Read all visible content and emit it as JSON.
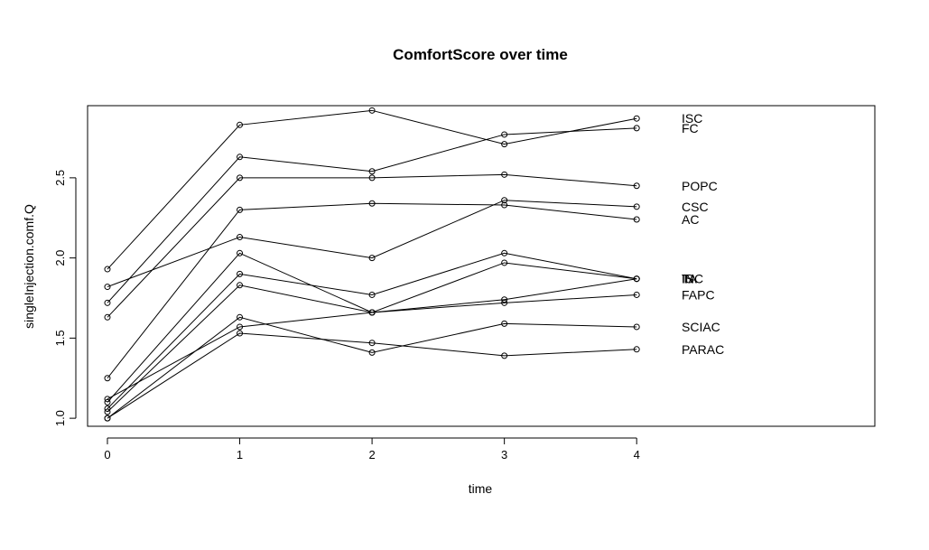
{
  "chart_data": {
    "type": "line",
    "title": "ComfortScore over time",
    "xlabel": "time",
    "ylabel": "singleInjection.comf.Q",
    "x": [
      0,
      1,
      2,
      3,
      4
    ],
    "x_ticks": [
      "0",
      "1",
      "2",
      "3",
      "4"
    ],
    "y_ticks": [
      "1.0",
      "1.5",
      "2.0",
      "2.5"
    ],
    "xlim": [
      -0.15,
      5.8
    ],
    "ylim": [
      0.95,
      2.95
    ],
    "grid": false,
    "legend": "none",
    "series": [
      {
        "name": "ISC",
        "values": [
          1.93,
          2.83,
          2.92,
          2.71,
          2.87
        ]
      },
      {
        "name": "FC",
        "values": [
          1.72,
          2.63,
          2.54,
          2.77,
          2.81
        ]
      },
      {
        "name": "POPC",
        "values": [
          1.63,
          2.5,
          2.5,
          2.52,
          2.45
        ]
      },
      {
        "name": "CSC",
        "values": [
          1.82,
          2.13,
          2.0,
          2.36,
          2.32
        ]
      },
      {
        "name": "AC",
        "values": [
          1.25,
          2.3,
          2.34,
          2.33,
          2.24
        ]
      },
      {
        "name": "IS",
        "values": [
          1.1,
          2.03,
          1.66,
          1.97,
          1.87
        ]
      },
      {
        "name": "INC",
        "values": [
          1.06,
          1.9,
          1.77,
          2.03,
          1.87
        ]
      },
      {
        "name": "TA",
        "values": [
          1.04,
          1.83,
          1.66,
          1.74,
          1.87
        ]
      },
      {
        "name": "FAPC",
        "values": [
          1.12,
          1.57,
          1.66,
          1.72,
          1.77
        ]
      },
      {
        "name": "SCIAC",
        "values": [
          1.0,
          1.63,
          1.41,
          1.59,
          1.57
        ]
      },
      {
        "name": "PARAC",
        "values": [
          1.0,
          1.53,
          1.47,
          1.39,
          1.43
        ]
      }
    ]
  }
}
